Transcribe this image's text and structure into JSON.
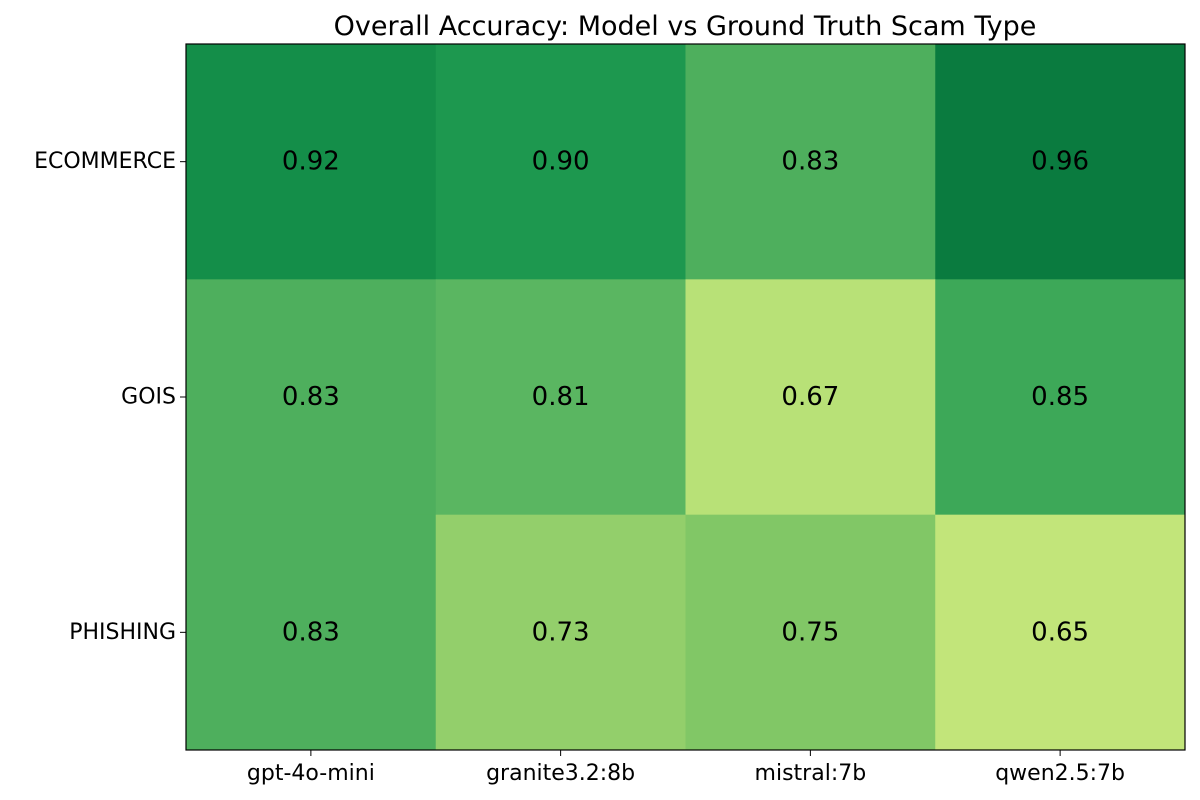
{
  "chart_data": {
    "type": "heatmap",
    "title": "Overall Accuracy: Model vs Ground Truth Scam Type",
    "xlabel": "",
    "ylabel": "",
    "x_categories": [
      "gpt-4o-mini",
      "granite3.2:8b",
      "mistral:7b",
      "qwen2.5:7b"
    ],
    "y_categories": [
      "ECOMMERCE",
      "GOIS",
      "PHISHING"
    ],
    "values": [
      [
        0.92,
        0.9,
        0.83,
        0.96
      ],
      [
        0.83,
        0.81,
        0.67,
        0.85
      ],
      [
        0.83,
        0.73,
        0.75,
        0.65
      ]
    ],
    "value_labels": [
      [
        "0.92",
        "0.90",
        "0.83",
        "0.96"
      ],
      [
        "0.83",
        "0.81",
        "0.67",
        "0.85"
      ],
      [
        "0.83",
        "0.73",
        "0.75",
        "0.65"
      ]
    ],
    "colormap": "YlGn",
    "colors": [
      [
        "#148e49",
        "#1d984f",
        "#4eaf5d",
        "#0a7b3f"
      ],
      [
        "#4eaf5d",
        "#5ab661",
        "#b8e177",
        "#3da858"
      ],
      [
        "#4eaf5d",
        "#93cf6b",
        "#81c766",
        "#c2e57a"
      ]
    ],
    "colorbar": false,
    "grid": false,
    "legend": "none"
  }
}
